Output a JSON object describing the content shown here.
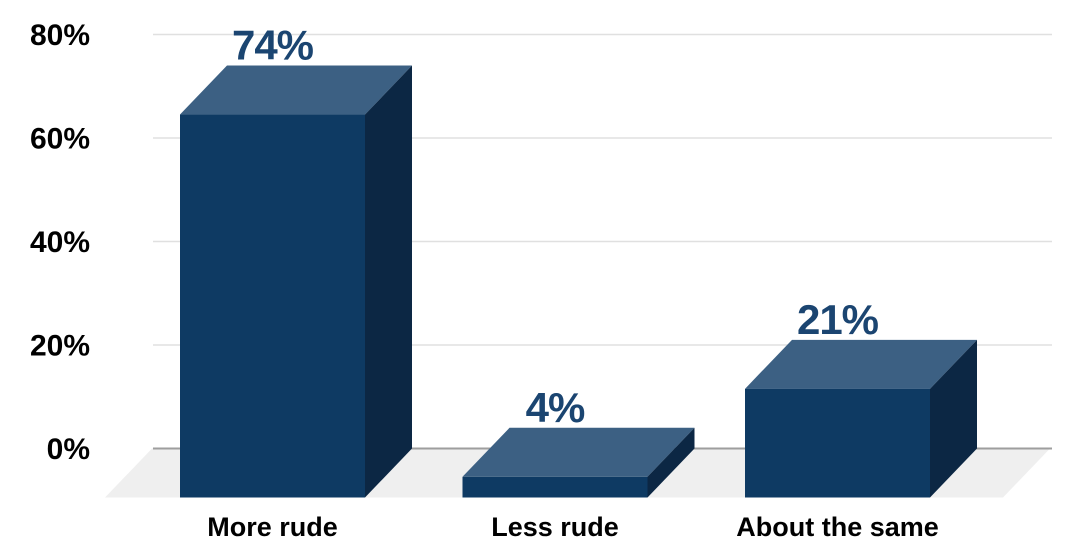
{
  "chart_data": {
    "type": "bar",
    "style": "3d-bar",
    "title": "",
    "categories": [
      "More rude",
      "Less rude",
      "About the same"
    ],
    "values": [
      74,
      4,
      21
    ],
    "value_labels": [
      "74%",
      "4%",
      "21%"
    ],
    "xlabel": "",
    "ylabel": "",
    "y_axis": {
      "min": 0,
      "max": 80,
      "ticks": [
        0,
        20,
        40,
        60,
        80
      ],
      "tick_labels": [
        "0%",
        "20%",
        "40%",
        "60%",
        "80%"
      ],
      "grid": true
    },
    "legend": {
      "visible": false
    },
    "colors": {
      "background": "#FFFFFF",
      "bar_front": "#0E3A63",
      "bar_top": "#3C6083",
      "bar_side": "#0C2744",
      "value_label": "#1B4571",
      "axis_label": "#000000",
      "gridline": "#E0E0E0",
      "zero_line": "#9E9E9E",
      "floor": "#EFEFEF"
    }
  }
}
